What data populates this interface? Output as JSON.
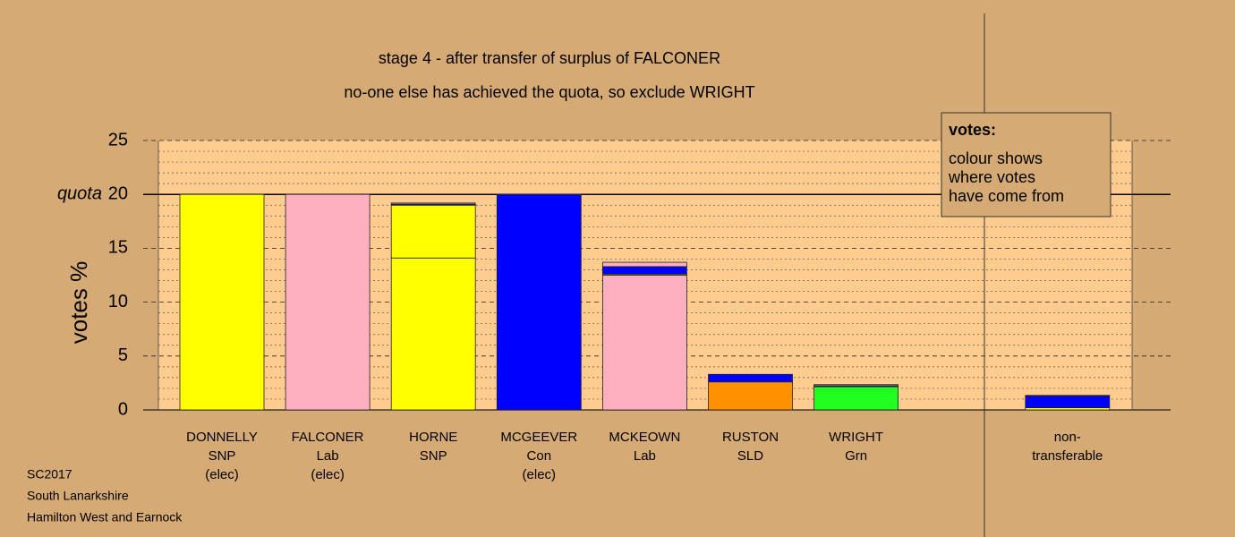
{
  "chart_data": {
    "type": "stacked-bar",
    "title": "stage 4 - after transfer of surplus of FALCONER",
    "subtitle": "no-one else has achieved the quota, so exclude WRIGHT",
    "y_label": "votes %",
    "quota": {
      "value": 20,
      "label": "quota"
    },
    "categories": [
      [
        "DONNELLY",
        "SNP",
        "(elec)"
      ],
      [
        "FALCONER",
        "Lab",
        "(elec)"
      ],
      [
        "HORNE",
        "SNP"
      ],
      [
        "MCGEEVER",
        "Con",
        "(elec)"
      ],
      [
        "MCKEOWN",
        "Lab"
      ],
      [
        "RUSTON",
        "SLD"
      ],
      [
        "WRIGHT",
        "Grn"
      ],
      null,
      [
        "non-",
        "transferable"
      ]
    ],
    "series": [
      {
        "colors": [
          "#ffff00",
          "#ffb0c0",
          "#ffff00",
          "#0000ff",
          "#ffb0c0",
          "#ff9000",
          "#20ff20",
          null,
          null
        ],
        "values": [
          20,
          20,
          14.1,
          20,
          12.5,
          2.6,
          2.15,
          null,
          null
        ]
      },
      {
        "color": "#ffff00",
        "values": [
          null,
          null,
          4.9,
          null,
          0.1,
          null,
          null,
          null,
          0.2
        ]
      },
      {
        "color": "#0000ff",
        "values": [
          null,
          null,
          0.1,
          null,
          0.7,
          0.7,
          0.1,
          null,
          1.1
        ]
      },
      {
        "color": "#ffb0c0",
        "values": [
          null,
          null,
          0.1,
          null,
          0.4,
          null,
          0.1,
          null,
          0.05
        ]
      }
    ],
    "ylim": [
      0,
      25
    ],
    "yticks": [
      0,
      5,
      10,
      15,
      20,
      25
    ],
    "minor_yticks": [
      1,
      2,
      3,
      4,
      6,
      7,
      8,
      9,
      11,
      12,
      13,
      14,
      16,
      17,
      18,
      19,
      21,
      22,
      23,
      24
    ],
    "legend": {
      "title": "votes:",
      "lines": [
        "colour shows",
        "where votes",
        "have come from"
      ]
    },
    "footnotes": [
      "SC2017",
      "South Lanarkshire",
      "Hamilton West and Earnock"
    ]
  }
}
